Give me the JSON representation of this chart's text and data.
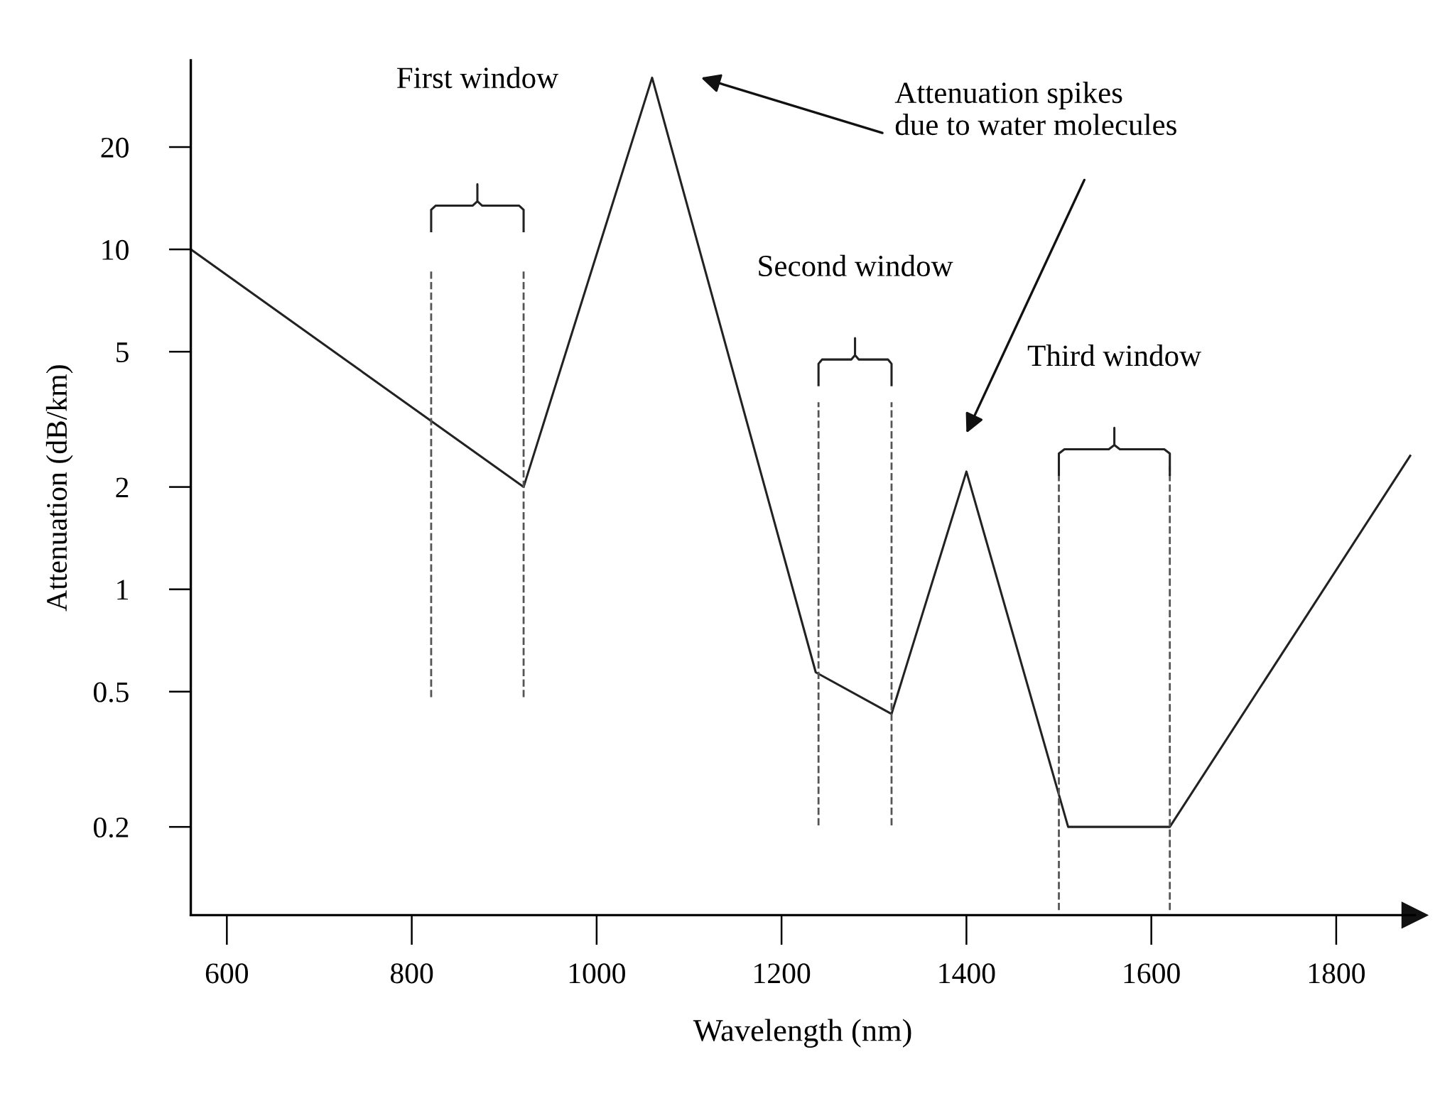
{
  "chart_data": {
    "type": "line",
    "xlabel": "Wavelength (nm)",
    "ylabel": "Attenuation (dB/km)",
    "x": [
      561,
      921,
      1060,
      1237,
      1319,
      1400,
      1510,
      1520,
      1620,
      1880
    ],
    "series": [
      {
        "color": "#222222",
        "values": [
          10,
          2,
          32,
          0.57,
          0.43,
          2.22,
          0.2,
          0.2,
          0.2,
          2.47
        ]
      }
    ],
    "xlim": [
      561,
      1885
    ],
    "ylim": [
      0.11,
      36
    ],
    "log": "y",
    "grid": false,
    "marker": "none",
    "line_style": "solid",
    "xticks": [
      600,
      800,
      1000,
      1200,
      1400,
      1600,
      1800
    ],
    "yticks": [
      0.2,
      0.5,
      1,
      2,
      5,
      10,
      20
    ],
    "ref_lines": [
      {
        "axis": "x",
        "value": 821,
        "color": "#555555",
        "line_style": "dashed"
      },
      {
        "axis": "x",
        "value": 921,
        "color": "#555555",
        "line_style": "dashed"
      },
      {
        "axis": "x",
        "value": 1240,
        "color": "#555555",
        "line_style": "dashed"
      },
      {
        "axis": "x",
        "value": 1319,
        "color": "#555555",
        "line_style": "dashed"
      },
      {
        "axis": "x",
        "value": 1500,
        "color": "#555555",
        "line_style": "dashed"
      },
      {
        "axis": "x",
        "value": 1620,
        "color": "#555555",
        "line_style": "dashed"
      }
    ],
    "annotations": [
      "First window",
      "Second window",
      "Third window",
      "Attenuation spikes\ndue to water molecules"
    ]
  }
}
